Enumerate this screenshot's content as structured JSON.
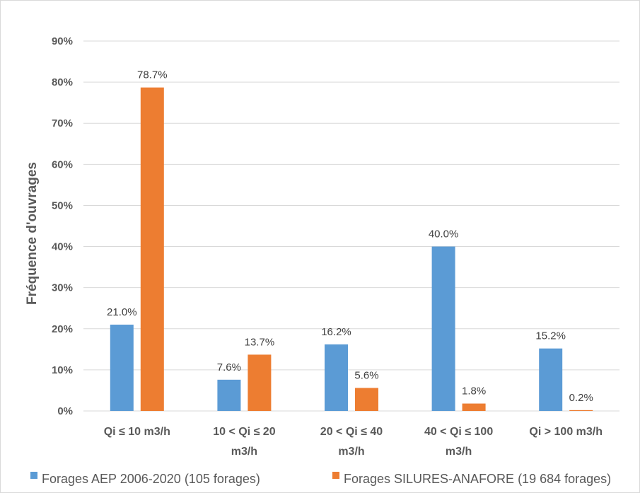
{
  "chart_data": {
    "type": "bar",
    "title": "",
    "xlabel": "",
    "ylabel": "Fréquence d'ouvrages",
    "ylim": [
      0,
      90
    ],
    "yticks": [
      "0%",
      "10%",
      "20%",
      "30%",
      "40%",
      "50%",
      "60%",
      "70%",
      "80%",
      "90%"
    ],
    "grid": true,
    "legend_position": "bottom",
    "categories": [
      [
        "Qi ≤ 10 m3/h"
      ],
      [
        "10 < Qi ≤ 20",
        "m3/h"
      ],
      [
        "20 < Qi ≤ 40",
        "m3/h"
      ],
      [
        "40 < Qi ≤ 100",
        "m3/h"
      ],
      [
        "Qi > 100 m3/h"
      ]
    ],
    "series": [
      {
        "name": "Forages AEP 2006-2020 (105 forages)",
        "color": "#5B9BD5",
        "values": [
          21.0,
          7.6,
          16.2,
          40.0,
          15.2
        ],
        "labels": [
          "21.0%",
          "7.6%",
          "16.2%",
          "40.0%",
          "15.2%"
        ]
      },
      {
        "name": "Forages SILURES-ANAFORE (19 684 forages)",
        "color": "#ED7D31",
        "values": [
          78.7,
          13.7,
          5.6,
          1.8,
          0.2
        ],
        "labels": [
          "78.7%",
          "13.7%",
          "5.6%",
          "1.8%",
          "0.2%"
        ]
      }
    ]
  }
}
